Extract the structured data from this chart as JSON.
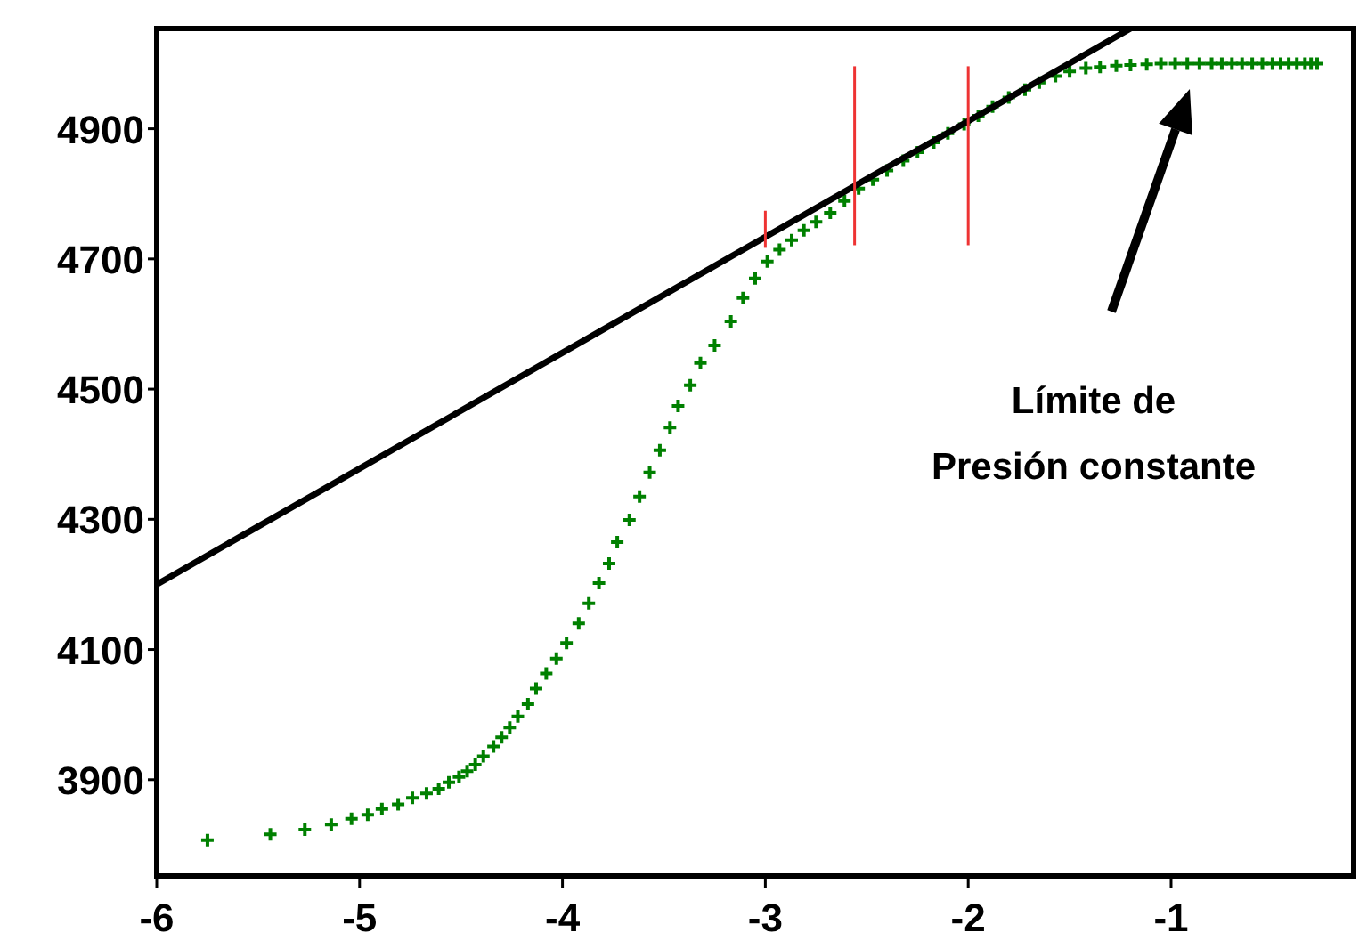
{
  "chart_data": {
    "type": "scatter",
    "xlim": [
      -6,
      -0.1
    ],
    "ylim": [
      3752,
      5054
    ],
    "xticks": [
      -6,
      -5,
      -4,
      -3,
      -2,
      -1
    ],
    "yticks": [
      3900,
      4100,
      4300,
      4500,
      4700,
      4900
    ],
    "series": [
      {
        "color": "#008000",
        "marker": "cross",
        "x": [
          -5.75,
          -5.44,
          -5.27,
          -5.14,
          -5.04,
          -4.96,
          -4.89,
          -4.81,
          -4.74,
          -4.67,
          -4.61,
          -4.56,
          -4.51,
          -4.47,
          -4.43,
          -4.39,
          -4.34,
          -4.3,
          -4.26,
          -4.22,
          -4.17,
          -4.13,
          -4.08,
          -4.03,
          -3.98,
          -3.92,
          -3.87,
          -3.82,
          -3.77,
          -3.73,
          -3.67,
          -3.62,
          -3.57,
          -3.52,
          -3.47,
          -3.43,
          -3.37,
          -3.32,
          -3.25,
          -3.17,
          -3.11,
          -3.05,
          -2.99,
          -2.93,
          -2.87,
          -2.81,
          -2.75,
          -2.68,
          -2.61,
          -2.54,
          -2.47,
          -2.4,
          -2.32,
          -2.25,
          -2.17,
          -2.1,
          -2.02,
          -1.95,
          -1.88,
          -1.8,
          -1.72,
          -1.65,
          -1.57,
          -1.5,
          -1.42,
          -1.35,
          -1.27,
          -1.2,
          -1.12,
          -1.05,
          -0.98,
          -0.92,
          -0.86,
          -0.8,
          -0.75,
          -0.7,
          -0.65,
          -0.6,
          -0.55,
          -0.5,
          -0.46,
          -0.42,
          -0.38,
          -0.34,
          -0.31,
          -0.28
        ],
        "values": [
          3807,
          3816,
          3823,
          3831,
          3840,
          3846,
          3855,
          3862,
          3872,
          3879,
          3886,
          3896,
          3904,
          3913,
          3923,
          3936,
          3951,
          3965,
          3980,
          3997,
          4016,
          4040,
          4063,
          4086,
          4110,
          4140,
          4171,
          4202,
          4232,
          4265,
          4299,
          4335,
          4372,
          4406,
          4441,
          4474,
          4506,
          4540,
          4567,
          4604,
          4640,
          4670,
          4696,
          4714,
          4729,
          4744,
          4757,
          4771,
          4789,
          4808,
          4822,
          4836,
          4851,
          4864,
          4879,
          4893,
          4907,
          4920,
          4934,
          4948,
          4960,
          4971,
          4981,
          4988,
          4993,
          4995,
          4997,
          4998,
          4999,
          5000,
          5000,
          5000,
          5000,
          5000,
          5000,
          5000,
          5000,
          5000,
          5000,
          5000,
          5000,
          5000,
          5000,
          5000,
          5000,
          5000
        ]
      },
      {
        "type": "line",
        "color": "#000000",
        "x": [
          -6,
          -1.2
        ],
        "values": [
          4200,
          5054
        ]
      },
      {
        "type": "line",
        "color": "#ee3333",
        "x": [
          -3,
          -3
        ],
        "values": [
          4717,
          4774
        ]
      },
      {
        "type": "line",
        "color": "#ee3333",
        "x": [
          -2.56,
          -2.56
        ],
        "values": [
          4721,
          4996
        ]
      },
      {
        "type": "line",
        "color": "#ee3333",
        "x": [
          -2,
          -2
        ],
        "values": [
          4721,
          4996
        ]
      }
    ],
    "annotations": [
      "Límite de\nPresión constante"
    ]
  }
}
